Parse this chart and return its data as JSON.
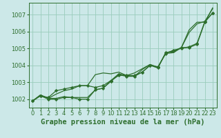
{
  "background_color": "#cce8e8",
  "grid_color": "#99ccbb",
  "line_color": "#2d6e2d",
  "xlabel": "Graphe pression niveau de la mer (hPa)",
  "xlabel_fontsize": 7.5,
  "tick_fontsize": 6,
  "xlim": [
    -0.5,
    23.5
  ],
  "ylim": [
    1001.5,
    1007.7
  ],
  "yticks": [
    1002,
    1003,
    1004,
    1005,
    1006,
    1007
  ],
  "xticks": [
    0,
    1,
    2,
    3,
    4,
    5,
    6,
    7,
    8,
    9,
    10,
    11,
    12,
    13,
    14,
    15,
    16,
    17,
    18,
    19,
    20,
    21,
    22,
    23
  ],
  "series": [
    {
      "y": [
        1001.9,
        1002.25,
        1002.05,
        1002.05,
        1002.15,
        1002.1,
        1002.1,
        1002.1,
        1002.55,
        1002.65,
        1003.1,
        1003.5,
        1003.4,
        1003.35,
        1003.75,
        1004.05,
        1003.85,
        1004.75,
        1004.8,
        1005.05,
        1005.95,
        1006.45,
        1006.6,
        1007.35
      ],
      "marker": false
    },
    {
      "y": [
        1001.9,
        1002.2,
        1002.0,
        1002.0,
        1002.1,
        1002.1,
        1002.0,
        1002.0,
        1002.55,
        1002.65,
        1003.05,
        1003.45,
        1003.35,
        1003.35,
        1003.6,
        1004.0,
        1003.85,
        1004.75,
        1004.85,
        1005.05,
        1005.05,
        1005.25,
        1006.55,
        1007.1
      ],
      "marker": true
    },
    {
      "y": [
        1001.9,
        1002.25,
        1002.05,
        1002.3,
        1002.5,
        1002.6,
        1002.8,
        1002.8,
        1003.45,
        1003.55,
        1003.5,
        1003.6,
        1003.4,
        1003.55,
        1003.8,
        1004.05,
        1003.9,
        1004.7,
        1004.75,
        1005.05,
        1006.1,
        1006.55,
        1006.55,
        1007.4
      ],
      "marker": false
    },
    {
      "y": [
        1001.9,
        1002.2,
        1002.1,
        1002.5,
        1002.6,
        1002.7,
        1002.8,
        1002.8,
        1002.7,
        1002.8,
        1003.1,
        1003.4,
        1003.4,
        1003.4,
        1003.6,
        1004.0,
        1003.9,
        1004.7,
        1004.9,
        1005.0,
        1005.1,
        1005.3,
        1006.6,
        1007.1
      ],
      "marker": true
    }
  ]
}
